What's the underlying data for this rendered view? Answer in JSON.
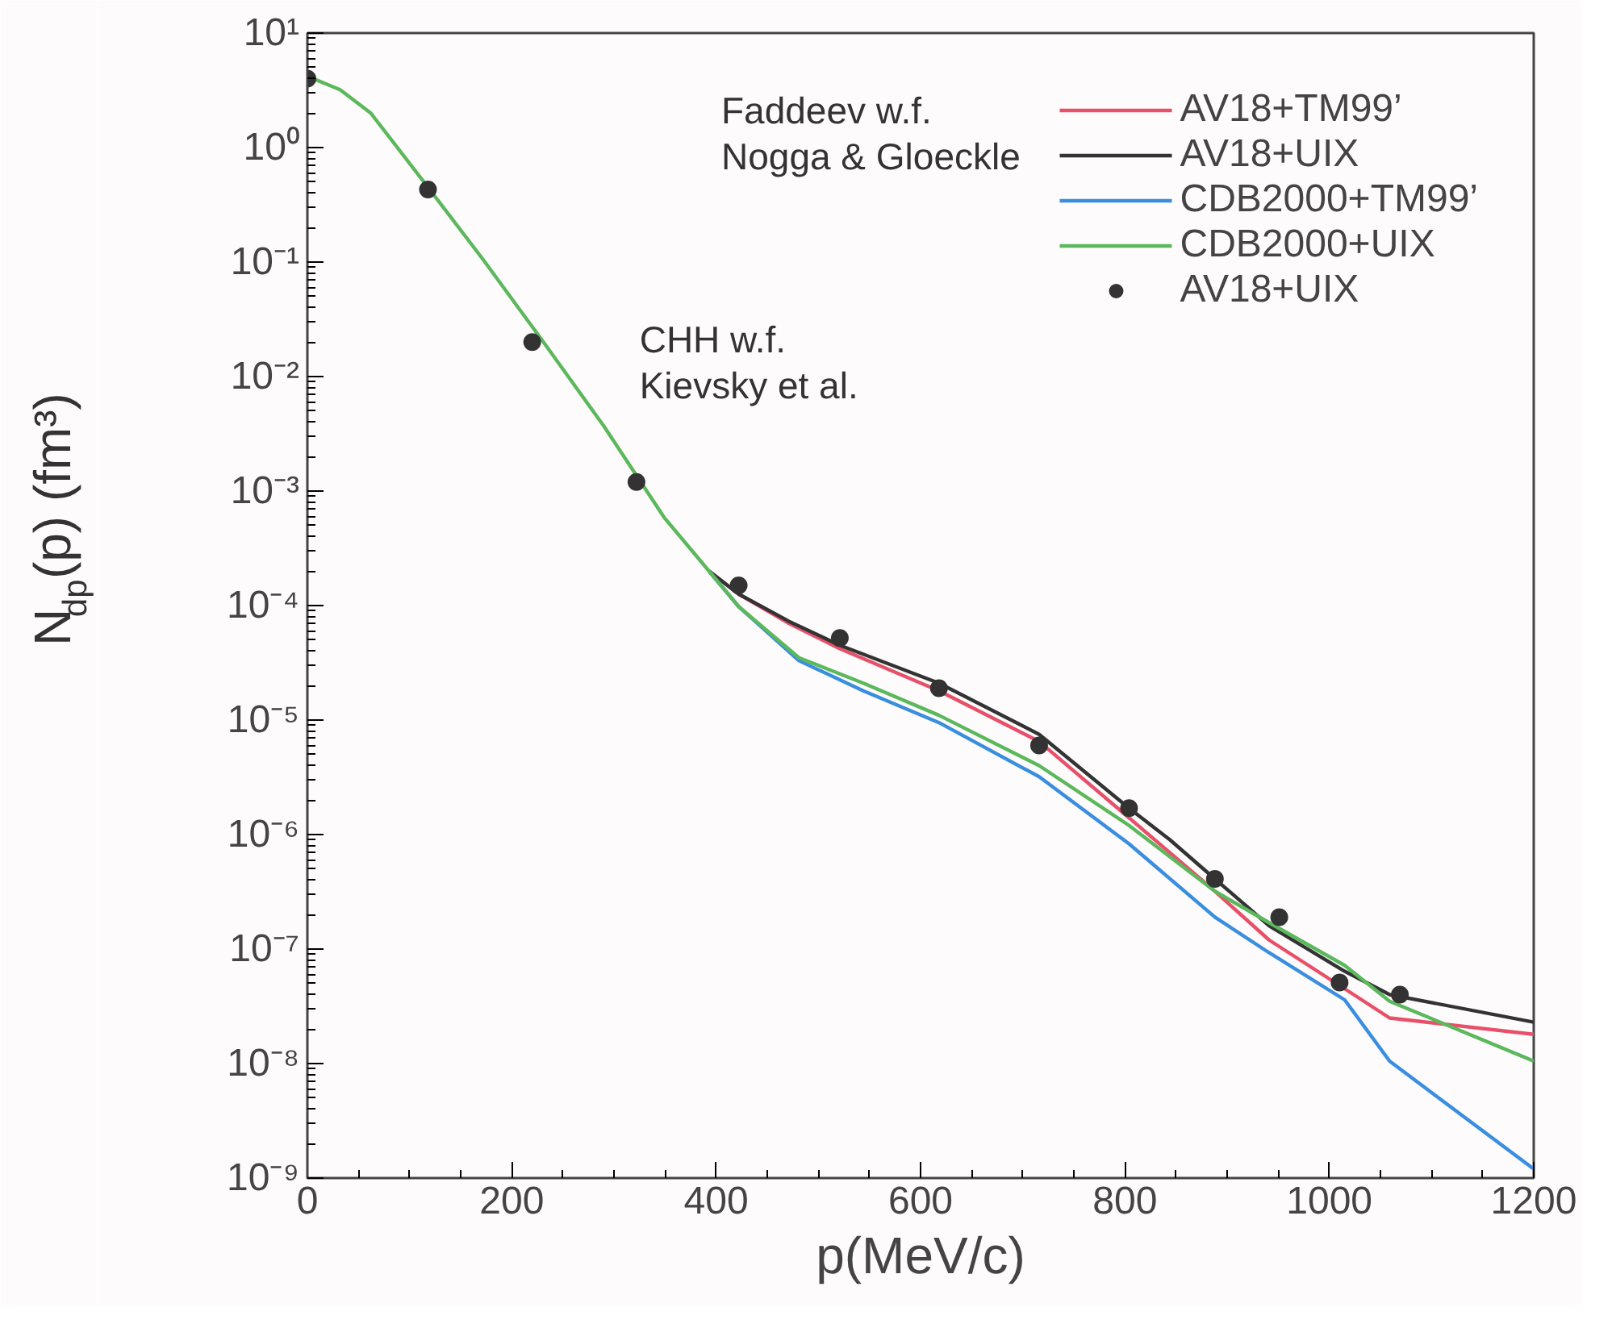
{
  "chart_data": {
    "type": "line",
    "xlabel": "p(MeV/c)",
    "ylabel": "N$_{dp}$(p) (fm³)",
    "log": "y",
    "xlim": [
      0,
      1200
    ],
    "ylim": [
      1e-09,
      10
    ],
    "xticks": [
      0,
      200,
      400,
      600,
      800,
      1000,
      1200
    ],
    "yticks": [
      {
        "value": 10,
        "label": "10¹"
      },
      {
        "value": 1,
        "label": "10⁰"
      },
      {
        "value": 0.1,
        "label": "10⁻¹"
      },
      {
        "value": 0.01,
        "label": "10⁻²"
      },
      {
        "value": 0.001,
        "label": "10⁻³"
      },
      {
        "value": 0.0001,
        "label": "10⁻⁴"
      },
      {
        "value": 1e-05,
        "label": "10⁻⁵"
      },
      {
        "value": 1e-06,
        "label": "10⁻⁶"
      },
      {
        "value": 1e-07,
        "label": "10⁻⁷"
      },
      {
        "value": 1e-08,
        "label": "10⁻⁸"
      },
      {
        "value": 1e-09,
        "label": "10⁻⁹"
      }
    ],
    "grid": false,
    "legend": "top right",
    "line_style": "solid",
    "annotations": [
      "Faddeev w.f.\nNogga & Gloeckle",
      "CHH w.f.\nKievsky et al."
    ],
    "series": [
      {
        "name": "AV18+TM99’",
        "color": "#e8506a",
        "x": [
          393,
          422,
          471,
          521,
          618,
          716,
          804,
          888,
          941,
          1015,
          1059,
          1200
        ],
        "values": [
          0.0002,
          0.000126,
          7e-05,
          4.2e-05,
          1.8e-05,
          6.5e-06,
          1.4e-06,
          3.2e-07,
          1.2e-07,
          4.5e-08,
          2.5e-08,
          1.8e-08
        ]
      },
      {
        "name": "AV18+UIX",
        "color": "#333333",
        "x": [
          393,
          422,
          471,
          521,
          618,
          716,
          804,
          844,
          888,
          941,
          1015,
          1059,
          1200
        ],
        "values": [
          0.0002,
          0.000126,
          7.3e-05,
          4.5e-05,
          2.1e-05,
          7.5e-06,
          1.7e-06,
          9e-07,
          4.1e-07,
          1.6e-07,
          6.4e-08,
          4e-08,
          2.3e-08
        ]
      },
      {
        "name": "CDB2000+TM99’",
        "color": "#3a8ee0",
        "x": [
          393,
          422,
          481,
          544,
          618,
          716,
          804,
          888,
          941,
          1015,
          1059,
          1200
        ],
        "values": [
          0.0002,
          9.8e-05,
          3.3e-05,
          1.8e-05,
          9.5e-06,
          3.2e-06,
          8.3e-07,
          1.9e-07,
          9.3e-08,
          3.6e-08,
          1.05e-08,
          1.2e-09
        ]
      },
      {
        "name": "CDB2000+UIX",
        "color": "#5cb85c",
        "x": [
          0,
          32,
          62,
          118,
          172,
          231,
          290,
          349,
          393,
          422,
          481,
          544,
          618,
          716,
          804,
          888,
          941,
          1015,
          1059,
          1200
        ],
        "values": [
          4.2,
          3.2,
          2.0,
          0.45,
          0.105,
          0.02,
          0.0037,
          0.00059,
          0.0002,
          9.8e-05,
          3.5e-05,
          2.1e-05,
          1.1e-05,
          4e-06,
          1.2e-06,
          3.2e-07,
          1.7e-07,
          7.2e-08,
          3.5e-08,
          1.05e-08
        ]
      },
      {
        "name": "AV18+UIX",
        "type": "scatter",
        "marker": "circle",
        "color": "#333333",
        "x": [
          0,
          118,
          220,
          322,
          422,
          521,
          618,
          716,
          804,
          888,
          951,
          1010,
          1069
        ],
        "values": [
          4.0,
          0.43,
          0.02,
          0.0012,
          0.00015,
          5.2e-05,
          1.9e-05,
          6e-06,
          1.7e-06,
          4.1e-07,
          1.9e-07,
          5.1e-08,
          4e-08
        ]
      }
    ]
  }
}
